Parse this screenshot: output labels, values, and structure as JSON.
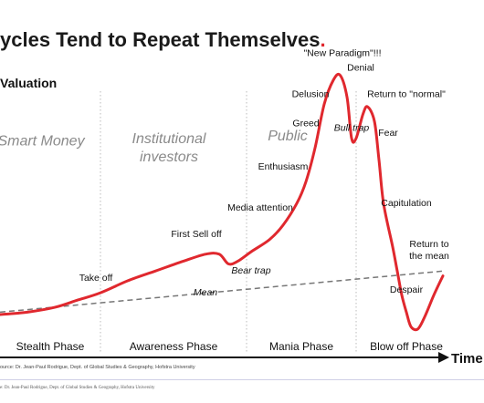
{
  "title": "ycles Tend to Repeat Themselves",
  "title_dot": ".",
  "footer_text": "e: Dr. Jean-Paul Rodrigue, Dept. of Global Studies & Geography, Hofstra University",
  "colors": {
    "accent": "#e0282e",
    "curve": "#e0282e",
    "mean": "#777777",
    "text": "#111111"
  },
  "chart_data": {
    "type": "line",
    "title": "ycles Tend to Repeat Themselves",
    "ylabel": "Valuation",
    "xlabel": "Time",
    "source": "ource: Dr. Jean-Paul Rodrigue, Dept. of Global Studies & Geography, Hofstra University",
    "x_range": [
      0,
      100
    ],
    "y_range": [
      0,
      100
    ],
    "grid": false,
    "phases": [
      {
        "label": "Stealth Phase",
        "start": 0,
        "end": 22
      },
      {
        "label": "Awareness Phase",
        "start": 22,
        "end": 54
      },
      {
        "label": "Mania Phase",
        "start": 54,
        "end": 78
      },
      {
        "label": "Blow off Phase",
        "start": 78,
        "end": 100
      }
    ],
    "investor_groups": [
      {
        "label": "Smart Money",
        "x": 9,
        "y": 70
      },
      {
        "label": "Institutional investors",
        "x": 37,
        "y": 71
      },
      {
        "label": "Public",
        "x": 63,
        "y": 72
      }
    ],
    "series": [
      {
        "name": "",
        "points": [
          [
            0,
            0
          ],
          [
            6,
            1
          ],
          [
            12,
            3
          ],
          [
            17,
            6
          ],
          [
            22,
            9
          ],
          [
            28,
            14
          ],
          [
            34,
            18
          ],
          [
            40,
            22
          ],
          [
            45,
            25
          ],
          [
            48,
            25
          ],
          [
            50,
            21
          ],
          [
            52,
            22
          ],
          [
            55,
            26
          ],
          [
            59,
            31
          ],
          [
            62,
            37
          ],
          [
            65,
            46
          ],
          [
            67,
            55
          ],
          [
            69,
            69
          ],
          [
            71,
            87
          ],
          [
            73,
            97
          ],
          [
            74.5,
            99
          ],
          [
            76,
            90
          ],
          [
            77,
            73
          ],
          [
            78,
            73
          ],
          [
            79.5,
            83
          ],
          [
            80.5,
            86
          ],
          [
            82,
            80
          ],
          [
            83,
            64
          ],
          [
            84,
            46
          ],
          [
            86,
            28
          ],
          [
            87,
            18
          ],
          [
            88,
            8
          ],
          [
            89,
            1
          ],
          [
            90,
            -5
          ],
          [
            91.5,
            -6
          ],
          [
            93,
            -1
          ],
          [
            95,
            8
          ],
          [
            97,
            16
          ]
        ]
      },
      {
        "name": "Mean",
        "points": [
          [
            0,
            1
          ],
          [
            97,
            18
          ]
        ]
      }
    ],
    "annotations": [
      {
        "text": "Take off",
        "x": 21,
        "y": 14
      },
      {
        "text": "First Sell off",
        "x": 43,
        "y": 32
      },
      {
        "text": "Bear trap",
        "x": 55,
        "y": 17
      },
      {
        "text": "Mean",
        "x": 45,
        "y": 8
      },
      {
        "text": "Media attention",
        "x": 57,
        "y": 43
      },
      {
        "text": "Enthusiasm",
        "x": 62,
        "y": 60
      },
      {
        "text": "Greed",
        "x": 67,
        "y": 78
      },
      {
        "text": "Delusion",
        "x": 68,
        "y": 90
      },
      {
        "text": "\"New Paradigm\"!!!",
        "x": 75,
        "y": 107
      },
      {
        "text": "Denial",
        "x": 79,
        "y": 101
      },
      {
        "text": "Return to \"normal\"",
        "x": 89,
        "y": 90
      },
      {
        "text": "Bull trap",
        "x": 77,
        "y": 76
      },
      {
        "text": "Fear",
        "x": 85,
        "y": 74
      },
      {
        "text": "Capitulation",
        "x": 89,
        "y": 45
      },
      {
        "text": "Return to",
        "x": 94,
        "y": 28
      },
      {
        "text": "the mean",
        "x": 94,
        "y": 23
      },
      {
        "text": "Despair",
        "x": 89,
        "y": 9
      }
    ]
  }
}
